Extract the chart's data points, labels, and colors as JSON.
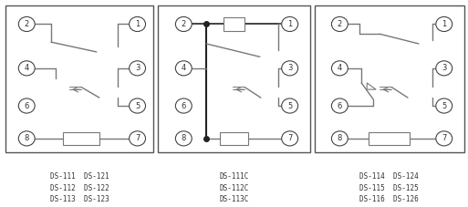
{
  "line_color": "#777777",
  "dark_line": "#222222",
  "text_color": "#333333",
  "panels": [
    {
      "label": "DS-111  DS-121\nDS-112  DS-122\nDS-113  DS-123"
    },
    {
      "label": "DS-111C\nDS-112C\nDS-113C"
    },
    {
      "label": "DS-114  DS-124\nDS-115  DS-125\nDS-116  DS-126"
    }
  ],
  "fig_w": 5.13,
  "fig_h": 2.27,
  "dpi": 100
}
